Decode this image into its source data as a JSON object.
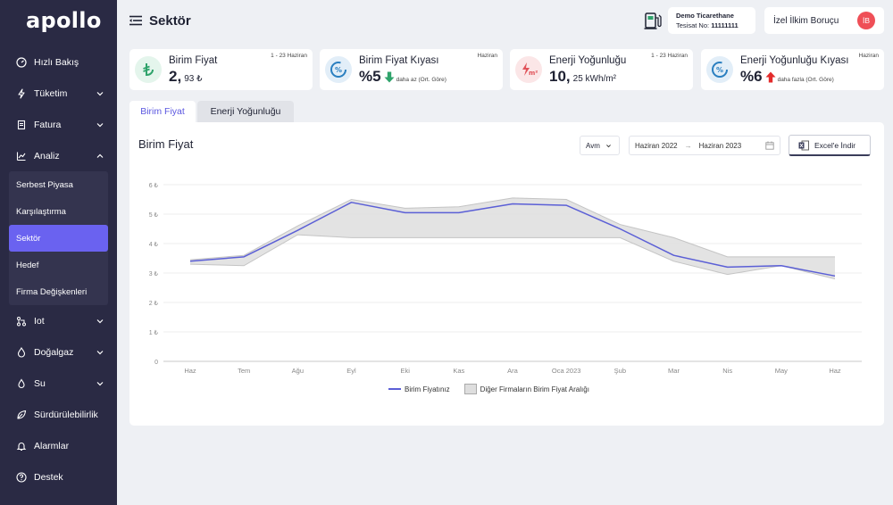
{
  "app": {
    "logo": "apollo"
  },
  "sidebar": {
    "items": [
      {
        "label": "Hızlı Bakış",
        "icon": "gauge-icon"
      },
      {
        "label": "Tüketim",
        "icon": "bolt-icon",
        "expandable": true
      },
      {
        "label": "Fatura",
        "icon": "invoice-icon",
        "expandable": true
      },
      {
        "label": "Analiz",
        "icon": "chart-icon",
        "expandable": true,
        "expanded": true
      },
      {
        "label": "Iot",
        "icon": "iot-icon",
        "expandable": true
      },
      {
        "label": "Doğalgaz",
        "icon": "flame-icon",
        "expandable": true
      },
      {
        "label": "Su",
        "icon": "drop-icon",
        "expandable": true
      },
      {
        "label": "Sürdürülebilirlik",
        "icon": "leaf-icon"
      },
      {
        "label": "Alarmlar",
        "icon": "bell-icon"
      },
      {
        "label": "Destek",
        "icon": "help-icon"
      }
    ],
    "analiz_sub": [
      {
        "label": "Serbest Piyasa"
      },
      {
        "label": "Karşılaştırma"
      },
      {
        "label": "Sektör",
        "active": true
      },
      {
        "label": "Hedef"
      },
      {
        "label": "Firma Değişkenleri"
      }
    ]
  },
  "header": {
    "title": "Sektör",
    "facility": {
      "name": "Demo Ticarethane",
      "no_label": "Tesisat No:",
      "no_value": "11111111"
    },
    "user": {
      "name": "İzel İlkim Boruçu",
      "initials": "İB"
    }
  },
  "cards": [
    {
      "title": "Birim Fiyat",
      "period": "1 - 23 Haziran",
      "value": "2,",
      "value_small": "93 ₺",
      "icon": "lira-icon",
      "accent": "#2fa36b"
    },
    {
      "title": "Birim Fiyat Kıyası",
      "period": "Haziran",
      "value": "%5",
      "note": "daha az (Ort. Göre)",
      "trend": "down",
      "icon": "percent-gauge-icon",
      "accent": "#2a7fc0"
    },
    {
      "title": "Enerji Yoğunluğu",
      "period": "1 - 23 Haziran",
      "value": "10,",
      "value_small": "25 kWh/m²",
      "icon": "energy-m2-icon",
      "accent": "#e0535a"
    },
    {
      "title": "Enerji Yoğunluğu Kıyası",
      "period": "Haziran",
      "value": "%6",
      "note": "daha fazla (Ort. Göre)",
      "trend": "up",
      "icon": "percent-gauge-icon",
      "accent": "#2a7fc0"
    }
  ],
  "tabs": [
    {
      "label": "Birim Fiyat",
      "active": true
    },
    {
      "label": "Enerji Yoğunluğu",
      "active": false
    }
  ],
  "panel": {
    "title": "Birim Fiyat",
    "select_value": "Avm",
    "date_from": "Haziran 2022",
    "date_to": "Haziran 2023",
    "export_label": "Excel'e İndir"
  },
  "colors": {
    "accent": "#6a62f0",
    "sidebar": "#2a2a44",
    "line": "#5b5fd6",
    "band": "#dedede"
  },
  "chart_data": {
    "type": "line",
    "categories": [
      "Haz",
      "Tem",
      "Ağu",
      "Eyl",
      "Eki",
      "Kas",
      "Ara",
      "Oca 2023",
      "Şub",
      "Mar",
      "Nis",
      "May",
      "Haz"
    ],
    "y_ticks": [
      "0",
      "1 ₺",
      "2 ₺",
      "3 ₺",
      "4 ₺",
      "5 ₺",
      "6 ₺"
    ],
    "ylim": [
      0,
      6
    ],
    "grid": true,
    "series": [
      {
        "name": "Birim Fiyatınız",
        "values": [
          3.4,
          3.55,
          4.45,
          5.4,
          5.05,
          5.05,
          5.35,
          5.3,
          4.5,
          3.6,
          3.2,
          3.25,
          2.9
        ]
      }
    ],
    "band": {
      "name": "Diğer Firmaların Birim Fiyat Aralığı",
      "upper": [
        3.45,
        3.6,
        4.6,
        5.5,
        5.2,
        5.25,
        5.55,
        5.5,
        4.65,
        4.2,
        3.55,
        3.55,
        3.55
      ],
      "lower": [
        3.3,
        3.25,
        4.3,
        4.2,
        4.2,
        4.2,
        4.2,
        4.2,
        4.2,
        3.4,
        2.95,
        3.25,
        2.8
      ]
    },
    "legend_position": "bottom"
  }
}
